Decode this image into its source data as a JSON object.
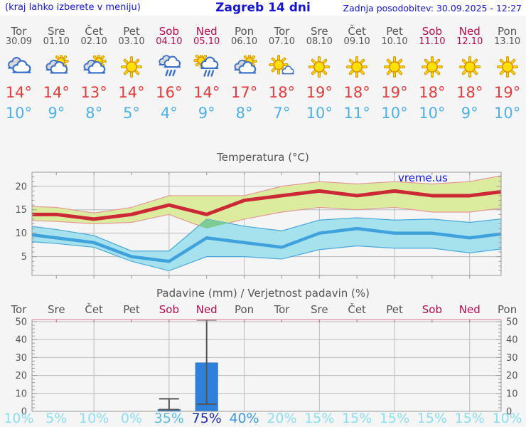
{
  "header": {
    "location_hint": "(kraj lahko izberete v meniju)",
    "title": "Zagreb 14 dni",
    "updated": "Zadnja posodobitev: 30.09.2025 - 12:27"
  },
  "watermark": "vreme.us",
  "forecast": {
    "days": [
      {
        "name": "Tor",
        "date": "30.09",
        "weekend": false,
        "icon": "cloudy",
        "high": "14°",
        "low": "10°"
      },
      {
        "name": "Sre",
        "date": "01.10",
        "weekend": false,
        "icon": "partly-cloudy",
        "high": "14°",
        "low": "9°"
      },
      {
        "name": "Čet",
        "date": "02.10",
        "weekend": false,
        "icon": "partly-cloudy",
        "high": "13°",
        "low": "8°"
      },
      {
        "name": "Pet",
        "date": "03.10",
        "weekend": false,
        "icon": "sunny",
        "high": "14°",
        "low": "5°"
      },
      {
        "name": "Sob",
        "date": "04.10",
        "weekend": true,
        "icon": "rain",
        "high": "16°",
        "low": "4°"
      },
      {
        "name": "Ned",
        "date": "05.10",
        "weekend": true,
        "icon": "sun-rain",
        "high": "14°",
        "low": "9°"
      },
      {
        "name": "Pon",
        "date": "06.10",
        "weekend": false,
        "icon": "partly-cloudy",
        "high": "17°",
        "low": "8°"
      },
      {
        "name": "Tor",
        "date": "07.10",
        "weekend": false,
        "icon": "mostly-sunny",
        "high": "18°",
        "low": "7°"
      },
      {
        "name": "Sre",
        "date": "08.10",
        "weekend": false,
        "icon": "sunny",
        "high": "19°",
        "low": "10°"
      },
      {
        "name": "Čet",
        "date": "09.10",
        "weekend": false,
        "icon": "sunny",
        "high": "18°",
        "low": "11°"
      },
      {
        "name": "Pet",
        "date": "10.10",
        "weekend": false,
        "icon": "sunny",
        "high": "19°",
        "low": "10°"
      },
      {
        "name": "Sob",
        "date": "11.10",
        "weekend": true,
        "icon": "sunny",
        "high": "18°",
        "low": "10°"
      },
      {
        "name": "Ned",
        "date": "12.10",
        "weekend": true,
        "icon": "sunny",
        "high": "18°",
        "low": "9°"
      },
      {
        "name": "Pon",
        "date": "13.10",
        "weekend": false,
        "icon": "sunny",
        "high": "19°",
        "low": "10°"
      }
    ]
  },
  "chart_data": [
    {
      "type": "line",
      "title": "Temperatura (°C)",
      "categories": [
        "30.09",
        "01.10",
        "02.10",
        "03.10",
        "04.10",
        "05.10",
        "06.10",
        "07.10",
        "08.10",
        "09.10",
        "10.10",
        "11.10",
        "12.10",
        "13.10"
      ],
      "ylim": [
        1,
        23
      ],
      "yticks": [
        5,
        10,
        15,
        20
      ],
      "grid": true,
      "series": [
        {
          "name": "max temperature",
          "color": "#cc2936",
          "values": [
            14,
            14,
            13,
            14,
            16,
            14,
            17,
            18,
            19,
            18,
            19,
            18,
            18,
            19
          ],
          "band_upper": [
            15.8,
            15.5,
            14.3,
            15.5,
            18,
            18,
            18,
            20,
            21,
            20.5,
            21,
            20.5,
            21,
            22.5
          ],
          "band_lower": [
            12.8,
            12.5,
            12,
            12.3,
            14,
            11,
            13,
            14.5,
            15.5,
            15,
            15.5,
            14.5,
            14.5,
            15.5
          ],
          "band_fill": "#dcec9f",
          "band_edge": "#e49896"
        },
        {
          "name": "min temperature",
          "color": "#3fa2dc",
          "values": [
            10,
            9,
            8,
            5,
            4,
            9,
            8,
            7,
            10,
            11,
            10,
            10,
            9,
            10
          ],
          "band_upper": [
            11.8,
            10.8,
            9.5,
            6.2,
            6.2,
            13,
            11.5,
            10.5,
            12.8,
            13.3,
            12.8,
            13,
            12.3,
            13.2
          ],
          "band_lower": [
            8.4,
            7.8,
            7,
            4,
            2,
            5,
            5,
            4.5,
            6.5,
            7.3,
            6.8,
            6.8,
            5.8,
            6.8
          ],
          "band_fill": "#a6e2ee",
          "band_edge": "#4aa8d8"
        }
      ],
      "band_overlap_fill": "#7ecb96"
    },
    {
      "type": "bar",
      "title": "Padavine (mm) / Verjetnost padavin (%)",
      "categories": [
        "Tor",
        "Sre",
        "Čet",
        "Pet",
        "Sob",
        "Ned",
        "Pon",
        "Tor",
        "Sre",
        "Čet",
        "Pet",
        "Sob",
        "Ned",
        "Pon"
      ],
      "ylim": [
        0,
        51
      ],
      "yticks": [
        0,
        10,
        20,
        30,
        40,
        50
      ],
      "values_mm": [
        0,
        0,
        0,
        0,
        1,
        27,
        0,
        0,
        0,
        0,
        0,
        0,
        0,
        0
      ],
      "whiskers": [
        null,
        null,
        null,
        null,
        {
          "low": 1,
          "high": 7
        },
        {
          "low": 4,
          "high": 51
        },
        null,
        null,
        null,
        null,
        null,
        null,
        null,
        null
      ],
      "probabilities_pct": [
        "10%",
        "5%",
        "10%",
        "0%",
        "35%",
        "75%",
        "40%",
        "20%",
        "15%",
        "15%",
        "15%",
        "15%",
        "15%",
        "10%"
      ],
      "prob_colors": [
        "#8adef0",
        "#8adef0",
        "#8adef0",
        "#8adef0",
        "#57bce8",
        "#1c2fae",
        "#3f99dc",
        "#8adef0",
        "#8adef0",
        "#8adef0",
        "#8adef0",
        "#8adef0",
        "#8adef0",
        "#8adef0"
      ],
      "bar_color": "#2e80d8",
      "whisker_color": "#555555",
      "top_border_color": "#e8a0b4"
    }
  ],
  "colors": {
    "page_bg": "#f5f5f6",
    "header_bg": "#ffffff",
    "link_blue": "#1414d2",
    "day_gray": "#555555",
    "weekend": "#b60a50",
    "temp_high": "#e23b3b",
    "temp_low": "#4db0e8",
    "grid": "#bbbbbb",
    "axis": "#999999",
    "axis_text": "#555555",
    "watermark_blue": "#1515e8"
  }
}
